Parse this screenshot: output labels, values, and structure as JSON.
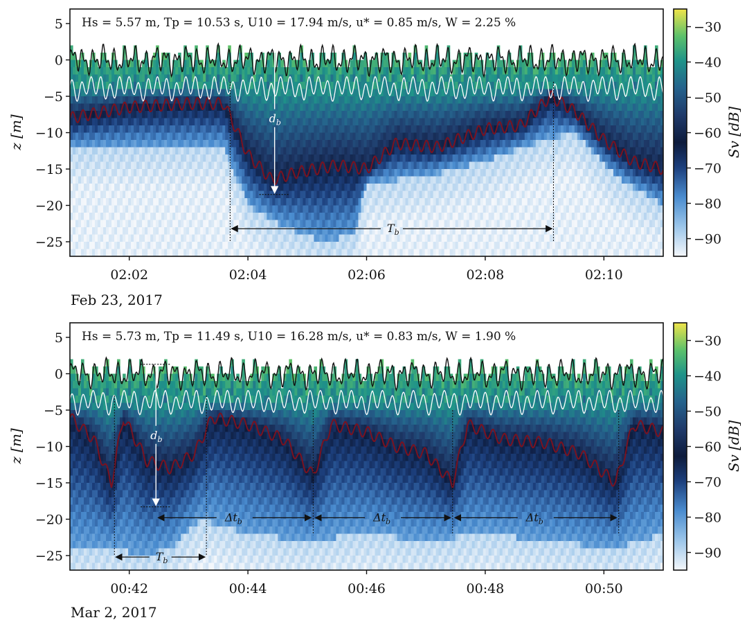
{
  "chart_data": [
    {
      "type": "heatmap",
      "panel": "top",
      "parameters": "Hs = 5.57 m,  Tp = 10.53 s,  U10 = 17.94 m/s,  u* = 0.85 m/s,  W = 2.25 %",
      "date": "Feb 23, 2017",
      "ylabel": "z [m]",
      "ylim": [
        -27,
        7
      ],
      "yticks": [
        5,
        0,
        -5,
        -10,
        -15,
        -20,
        -25
      ],
      "ytick_labels": [
        "5",
        "0",
        "−5",
        "−10",
        "−15",
        "−20",
        "−25"
      ],
      "xlim_minutes": [
        121,
        131
      ],
      "xticks_minutes": [
        122,
        124,
        126,
        128,
        130
      ],
      "xtick_labels": [
        "02:02",
        "02:04",
        "02:06",
        "02:08",
        "02:10"
      ],
      "colorbar": {
        "label": "Sv [dB]",
        "range": [
          -95,
          -25
        ],
        "ticks": [
          -30,
          -40,
          -50,
          -60,
          -70,
          -80,
          -90
        ],
        "tick_labels": [
          "−30",
          "−40",
          "−50",
          "−60",
          "−70",
          "−80",
          "−90"
        ]
      },
      "annotations": {
        "d_b_label": "d",
        "d_b_sub": "b",
        "d_b_time_minutes": 124.45,
        "d_b_top_z": 2.3,
        "d_b_bottom_z": -18.5,
        "T_b_label": "T",
        "T_b_sub": "b",
        "T_b_start_minutes": 123.7,
        "T_b_end_minutes": 129.15,
        "T_b_z": -23.2
      }
    },
    {
      "type": "heatmap",
      "panel": "bottom",
      "parameters": "Hs = 5.73 m,  Tp = 11.49 s,  U10 = 16.28 m/s,  u* = 0.83 m/s,  W = 1.90 %",
      "date": "Mar 2, 2017",
      "ylabel": "z [m]",
      "ylim": [
        -27,
        7
      ],
      "yticks": [
        5,
        0,
        -5,
        -10,
        -15,
        -20,
        -25
      ],
      "ytick_labels": [
        "5",
        "0",
        "−5",
        "−10",
        "−15",
        "−20",
        "−25"
      ],
      "xlim_minutes": [
        41,
        51
      ],
      "xticks_minutes": [
        42,
        44,
        46,
        48,
        50
      ],
      "xtick_labels": [
        "00:42",
        "00:44",
        "00:46",
        "00:48",
        "00:50"
      ],
      "colorbar": {
        "label": "Sv [dB]",
        "range": [
          -95,
          -25
        ],
        "ticks": [
          -30,
          -40,
          -50,
          -60,
          -70,
          -80,
          -90
        ],
        "tick_labels": [
          "−30",
          "−40",
          "−50",
          "−60",
          "−70",
          "−80",
          "−90"
        ]
      },
      "annotations": {
        "d_b_label": "d",
        "d_b_sub": "b",
        "d_b_time_minutes": 42.45,
        "d_b_top_z": 1.3,
        "d_b_bottom_z": -18.3,
        "T_b_label": "T",
        "T_b_sub": "b",
        "T_b_start_minutes": 41.75,
        "T_b_end_minutes": 43.3,
        "T_b_z": -25.2,
        "delta_t_label": "Δt",
        "delta_t_sub": "b",
        "delta_t_markers_minutes": [
          42.45,
          45.1,
          47.45,
          50.25
        ],
        "delta_t_z": -19.8
      }
    }
  ]
}
